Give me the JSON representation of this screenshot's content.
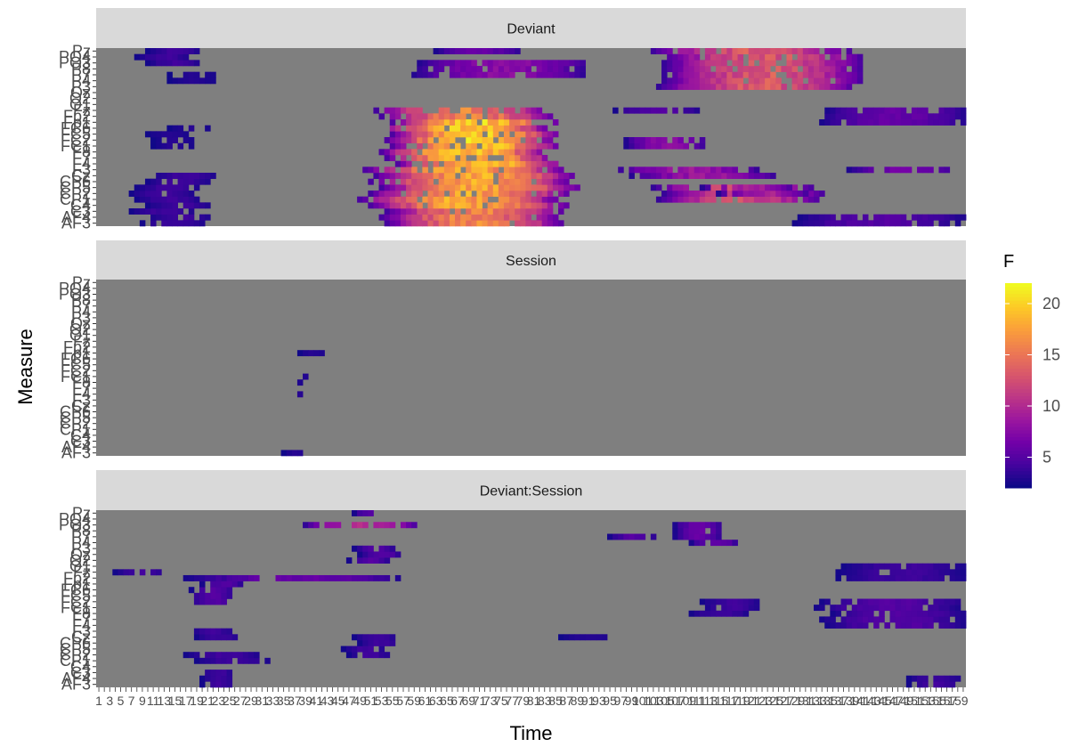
{
  "chart_data": {
    "type": "heatmap",
    "xlabel": "Time",
    "ylabel": "Measure",
    "legend": {
      "title": "F",
      "min": 2,
      "max": 22,
      "ticks": [
        5,
        10,
        15,
        20
      ],
      "colors": [
        "#0d0887",
        "#47039f",
        "#7301a8",
        "#9c179e",
        "#bd3786",
        "#d8576b",
        "#ed7953",
        "#fa9e3b",
        "#fdc926",
        "#f0f921"
      ],
      "placement": "right"
    },
    "na_color": "#7f7f7f",
    "measures": [
      "AF3",
      "AF4",
      "C3",
      "C4",
      "CP1",
      "CP2",
      "CP5",
      "CP6",
      "Cz",
      "F3",
      "F4",
      "F7",
      "F8",
      "FC1",
      "FC2",
      "FC5",
      "FC6",
      "Fp1",
      "Fp2",
      "Fz",
      "O1",
      "O2",
      "Oz",
      "P3",
      "P4",
      "P7",
      "P8",
      "PO3",
      "PO4",
      "Pz"
    ],
    "time_count": 160,
    "panels": [
      {
        "strip": "Deviant",
        "segments": [
          {
            "rows": [
              0,
              2
            ],
            "t0": 52,
            "t1": 85,
            "peak": 17
          },
          {
            "rows": [
              3,
              9
            ],
            "t0": 50,
            "t1": 87,
            "peak": 19
          },
          {
            "rows": [
              10,
              17
            ],
            "t0": 53,
            "t1": 84,
            "peak": 21
          },
          {
            "rows": [
              18,
              19
            ],
            "t0": 51,
            "t1": 83,
            "peak": 17
          },
          {
            "rows": [
              0,
              1
            ],
            "t0": 129,
            "t1": 160,
            "peak": 5
          },
          {
            "rows": [
              4,
              6
            ],
            "t0": 102,
            "t1": 132,
            "peak": 13
          },
          {
            "rows": [
              8,
              9
            ],
            "t0": 96,
            "t1": 123,
            "peak": 9
          },
          {
            "rows": [
              13,
              14
            ],
            "t0": 97,
            "t1": 112,
            "peak": 8
          },
          {
            "rows": [
              19,
              19
            ],
            "t0": 96,
            "t1": 112,
            "peak": 5
          },
          {
            "rows": [
              23,
              29
            ],
            "t0": 103,
            "t1": 140,
            "peak": 14
          },
          {
            "rows": [
              25,
              27
            ],
            "t0": 58,
            "t1": 90,
            "peak": 8
          },
          {
            "rows": [
              29,
              29
            ],
            "t0": 60,
            "t1": 76,
            "peak": 6
          },
          {
            "rows": [
              0,
              8
            ],
            "t0": 8,
            "t1": 20,
            "peak": 4
          },
          {
            "rows": [
              13,
              16
            ],
            "t0": 11,
            "t1": 19,
            "peak": 3
          },
          {
            "rows": [
              27,
              29
            ],
            "t0": 8,
            "t1": 18,
            "peak": 4
          },
          {
            "rows": [
              24,
              25
            ],
            "t0": 12,
            "t1": 21,
            "peak": 3
          },
          {
            "rows": [
              9,
              9
            ],
            "t0": 140,
            "t1": 160,
            "peak": 7
          },
          {
            "rows": [
              17,
              19
            ],
            "t0": 133,
            "t1": 160,
            "peak": 6
          },
          {
            "rows": [
              5,
              6
            ],
            "t0": 113,
            "t1": 130,
            "peak": 10
          }
        ]
      },
      {
        "strip": "Session",
        "segments": [
          {
            "rows": [
              0,
              0
            ],
            "t0": 35,
            "t1": 40,
            "peak": 3
          },
          {
            "rows": [
              10,
              10
            ],
            "t0": 37,
            "t1": 39,
            "peak": 3
          },
          {
            "rows": [
              12,
              13
            ],
            "t0": 38,
            "t1": 39,
            "peak": 3
          },
          {
            "rows": [
              17,
              17
            ],
            "t0": 38,
            "t1": 43,
            "peak": 3
          }
        ]
      },
      {
        "strip": "Deviant:Session",
        "segments": [
          {
            "rows": [
              0,
              2
            ],
            "t0": 20,
            "t1": 26,
            "peak": 4
          },
          {
            "rows": [
              4,
              5
            ],
            "t0": 17,
            "t1": 31,
            "peak": 4
          },
          {
            "rows": [
              8,
              9
            ],
            "t0": 17,
            "t1": 25,
            "peak": 4
          },
          {
            "rows": [
              14,
              18
            ],
            "t0": 18,
            "t1": 26,
            "peak": 5
          },
          {
            "rows": [
              18,
              18
            ],
            "t0": 16,
            "t1": 55,
            "peak": 6
          },
          {
            "rows": [
              19,
              19
            ],
            "t0": 2,
            "t1": 12,
            "peak": 4
          },
          {
            "rows": [
              5,
              8
            ],
            "t0": 47,
            "t1": 55,
            "peak": 4
          },
          {
            "rows": [
              21,
              23
            ],
            "t0": 47,
            "t1": 55,
            "peak": 5
          },
          {
            "rows": [
              27,
              27
            ],
            "t0": 39,
            "t1": 60,
            "peak": 11
          },
          {
            "rows": [
              29,
              29
            ],
            "t0": 48,
            "t1": 53,
            "peak": 5
          },
          {
            "rows": [
              25,
              25
            ],
            "t0": 93,
            "t1": 102,
            "peak": 5
          },
          {
            "rows": [
              24,
              27
            ],
            "t0": 107,
            "t1": 116,
            "peak": 6
          },
          {
            "rows": [
              10,
              14
            ],
            "t0": 133,
            "t1": 160,
            "peak": 5
          },
          {
            "rows": [
              18,
              20
            ],
            "t0": 136,
            "t1": 160,
            "peak": 4
          },
          {
            "rows": [
              0,
              1
            ],
            "t0": 150,
            "t1": 160,
            "peak": 4
          },
          {
            "rows": [
              12,
              14
            ],
            "t0": 111,
            "t1": 122,
            "peak": 4
          },
          {
            "rows": [
              8,
              8
            ],
            "t0": 86,
            "t1": 96,
            "peak": 3
          }
        ]
      }
    ]
  }
}
